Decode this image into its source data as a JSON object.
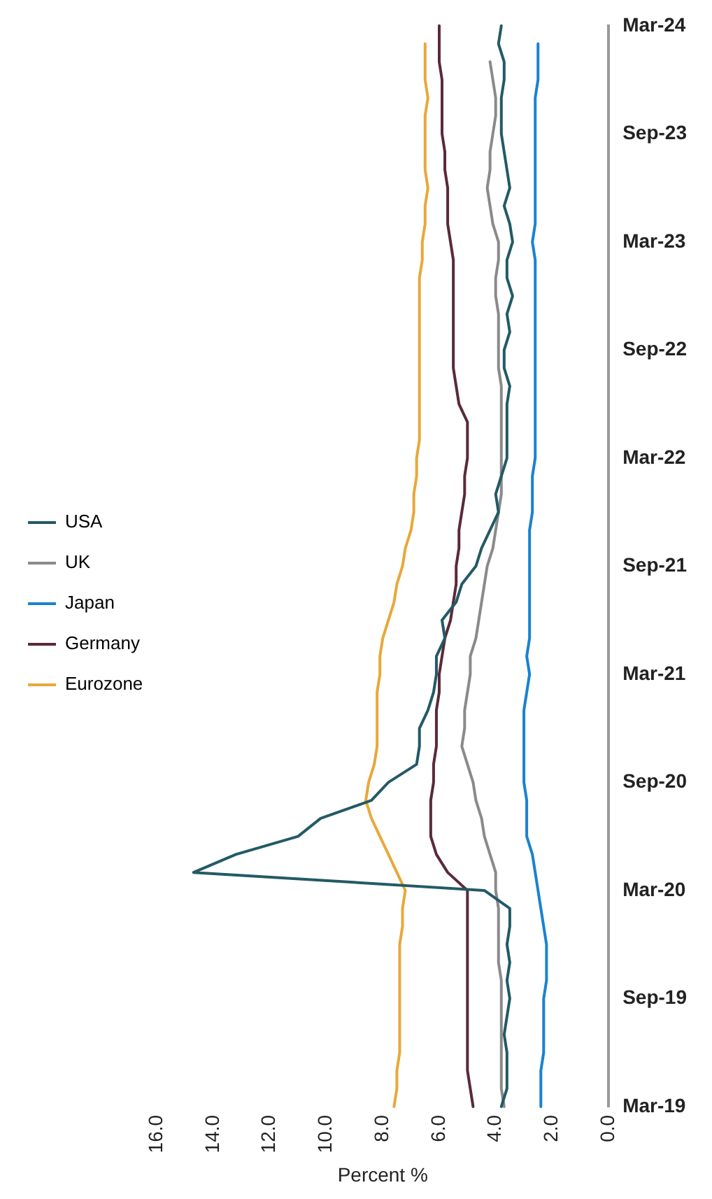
{
  "chart_data": {
    "type": "line",
    "orientation": "horizontal",
    "xlabel": "Percent %",
    "categories": [
      "Mar-24",
      null,
      null,
      null,
      null,
      null,
      "Sep-23",
      null,
      null,
      null,
      null,
      null,
      "Mar-23",
      null,
      null,
      null,
      null,
      null,
      "Sep-22",
      null,
      null,
      null,
      null,
      null,
      "Mar-22",
      null,
      null,
      null,
      null,
      null,
      "Sep-21",
      null,
      null,
      null,
      null,
      null,
      "Mar-21",
      null,
      null,
      null,
      null,
      null,
      "Sep-20",
      null,
      null,
      null,
      null,
      null,
      "Mar-20",
      null,
      null,
      null,
      null,
      null,
      "Sep-19",
      null,
      null,
      null,
      null,
      null,
      "Mar-19"
    ],
    "series": [
      {
        "name": "USA",
        "color": "#235a66",
        "values": [
          3.8,
          3.9,
          3.7,
          3.7,
          3.8,
          3.8,
          3.8,
          3.7,
          3.6,
          3.5,
          3.7,
          3.5,
          3.4,
          3.6,
          3.6,
          3.4,
          3.6,
          3.5,
          3.7,
          3.7,
          3.5,
          3.6,
          3.6,
          3.6,
          3.6,
          3.8,
          4.0,
          3.9,
          4.2,
          4.5,
          4.7,
          5.2,
          5.4,
          5.9,
          5.8,
          6.1,
          6.1,
          6.2,
          6.4,
          6.7,
          6.7,
          6.8,
          7.8,
          8.4,
          10.2,
          11.0,
          13.2,
          14.7,
          4.4,
          3.5,
          3.5,
          3.6,
          3.5,
          3.6,
          3.5,
          3.6,
          3.7,
          3.6,
          3.6,
          3.6,
          3.8
        ]
      },
      {
        "name": "UK",
        "color": "#8a8a8a",
        "values": [
          null,
          null,
          4.2,
          4.1,
          4.0,
          4.0,
          4.1,
          4.2,
          4.2,
          4.3,
          4.2,
          4.1,
          3.9,
          3.9,
          4.0,
          4.0,
          3.9,
          3.9,
          3.9,
          3.9,
          3.8,
          3.8,
          3.8,
          3.8,
          3.8,
          3.8,
          3.8,
          3.9,
          4.0,
          4.1,
          4.3,
          4.4,
          4.5,
          4.6,
          4.7,
          4.9,
          4.9,
          5.0,
          5.1,
          5.1,
          5.2,
          5.0,
          4.8,
          4.7,
          4.5,
          4.4,
          4.2,
          4.0,
          4.0,
          3.9,
          3.9,
          3.9,
          3.9,
          3.8,
          3.8,
          3.8,
          3.8,
          3.8,
          3.8,
          3.8,
          3.7
        ]
      },
      {
        "name": "Japan",
        "color": "#1a82d0",
        "values": [
          null,
          2.5,
          2.5,
          2.5,
          2.6,
          2.6,
          2.6,
          2.6,
          2.6,
          2.6,
          2.6,
          2.6,
          2.7,
          2.6,
          2.6,
          2.6,
          2.6,
          2.6,
          2.6,
          2.6,
          2.6,
          2.6,
          2.6,
          2.6,
          2.6,
          2.7,
          2.7,
          2.7,
          2.8,
          2.8,
          2.8,
          2.8,
          2.8,
          2.8,
          2.8,
          2.9,
          2.8,
          2.9,
          3.0,
          3.0,
          3.0,
          3.0,
          3.0,
          2.9,
          2.9,
          2.9,
          2.7,
          2.6,
          2.5,
          2.4,
          2.3,
          2.2,
          2.2,
          2.2,
          2.3,
          2.3,
          2.3,
          2.3,
          2.4,
          2.4,
          2.4
        ]
      },
      {
        "name": "Germany",
        "color": "#5a2a3a",
        "values": [
          6.0,
          6.0,
          6.0,
          5.9,
          5.9,
          5.9,
          5.9,
          5.8,
          5.8,
          5.7,
          5.7,
          5.7,
          5.6,
          5.5,
          5.5,
          5.5,
          5.5,
          5.5,
          5.5,
          5.5,
          5.4,
          5.3,
          5.0,
          5.0,
          5.0,
          5.1,
          5.1,
          5.2,
          5.3,
          5.3,
          5.4,
          5.4,
          5.5,
          5.6,
          5.8,
          5.9,
          6.0,
          6.0,
          6.1,
          6.1,
          6.1,
          6.2,
          6.2,
          6.3,
          6.3,
          6.3,
          6.1,
          5.7,
          5.0,
          5.0,
          5.0,
          5.0,
          5.0,
          5.0,
          5.0,
          5.0,
          5.0,
          5.0,
          5.0,
          4.9,
          4.8
        ]
      },
      {
        "name": "Eurozone",
        "color": "#e8a83a",
        "values": [
          null,
          6.5,
          6.5,
          6.5,
          6.4,
          6.5,
          6.5,
          6.5,
          6.5,
          6.4,
          6.5,
          6.5,
          6.6,
          6.6,
          6.7,
          6.7,
          6.7,
          6.7,
          6.7,
          6.7,
          6.7,
          6.7,
          6.7,
          6.7,
          6.8,
          6.8,
          6.9,
          6.9,
          7.0,
          7.2,
          7.3,
          7.5,
          7.6,
          7.8,
          8.0,
          8.1,
          8.1,
          8.2,
          8.2,
          8.2,
          8.2,
          8.3,
          8.5,
          8.6,
          8.4,
          8.1,
          7.8,
          7.5,
          7.2,
          7.3,
          7.3,
          7.4,
          7.4,
          7.4,
          7.4,
          7.4,
          7.4,
          7.4,
          7.5,
          7.5,
          7.6
        ]
      }
    ],
    "xlim": [
      16,
      0
    ],
    "xticks": [
      {
        "value": 16,
        "label": "16.0"
      },
      {
        "value": 14,
        "label": "14.0"
      },
      {
        "value": 12,
        "label": "12.0"
      },
      {
        "value": 10,
        "label": "10.0"
      },
      {
        "value": 8,
        "label": "8.0"
      },
      {
        "value": 6,
        "label": "6.0"
      },
      {
        "value": 4,
        "label": "4.0"
      },
      {
        "value": 2,
        "label": "2.0"
      },
      {
        "value": 0,
        "label": "0.0"
      }
    ],
    "grid": false,
    "legend": "left",
    "marker": "none",
    "line_style": "solid"
  }
}
